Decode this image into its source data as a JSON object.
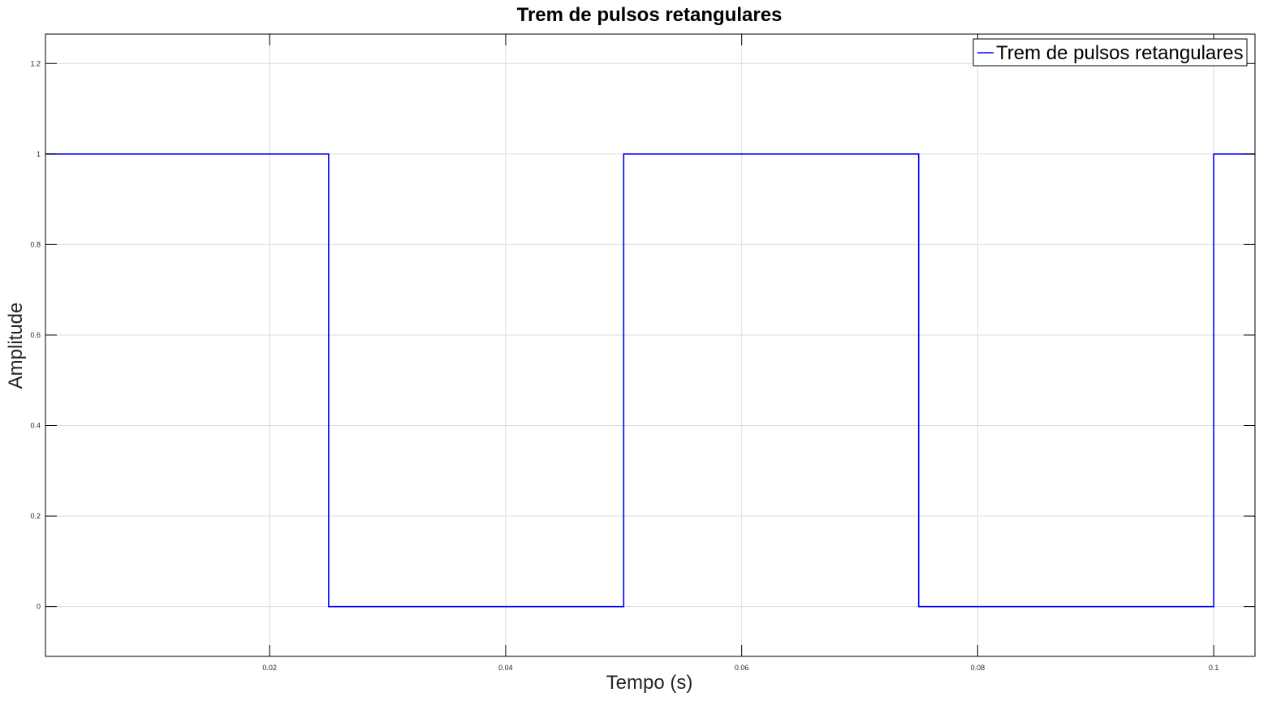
{
  "chart_data": {
    "type": "line",
    "title": "Trem de pulsos retangulares",
    "xlabel": "Tempo (s)",
    "ylabel": "Amplitude",
    "xlim": [
      0.001,
      0.1035
    ],
    "ylim": [
      -0.11,
      1.265
    ],
    "x_ticks": [
      0.02,
      0.04,
      0.06,
      0.08,
      0.1
    ],
    "x_tick_labels": [
      "0.02",
      "0.04",
      "0.06",
      "0.08",
      "0.1"
    ],
    "y_ticks": [
      0,
      0.2,
      0.4,
      0.6,
      0.8,
      1,
      1.2
    ],
    "y_tick_labels": [
      "0",
      "0.2",
      "0.4",
      "0.6",
      "0.8",
      "1",
      "1.2"
    ],
    "grid": true,
    "legend_position": "top-right",
    "series": [
      {
        "name": "Trem de pulsos retangulares",
        "color": "#0000ff",
        "x": [
          0.001,
          0.025,
          0.025,
          0.05,
          0.05,
          0.075,
          0.075,
          0.1,
          0.1,
          0.1035
        ],
        "y": [
          1,
          1,
          0,
          0,
          1,
          1,
          0,
          0,
          1,
          1
        ]
      }
    ]
  }
}
